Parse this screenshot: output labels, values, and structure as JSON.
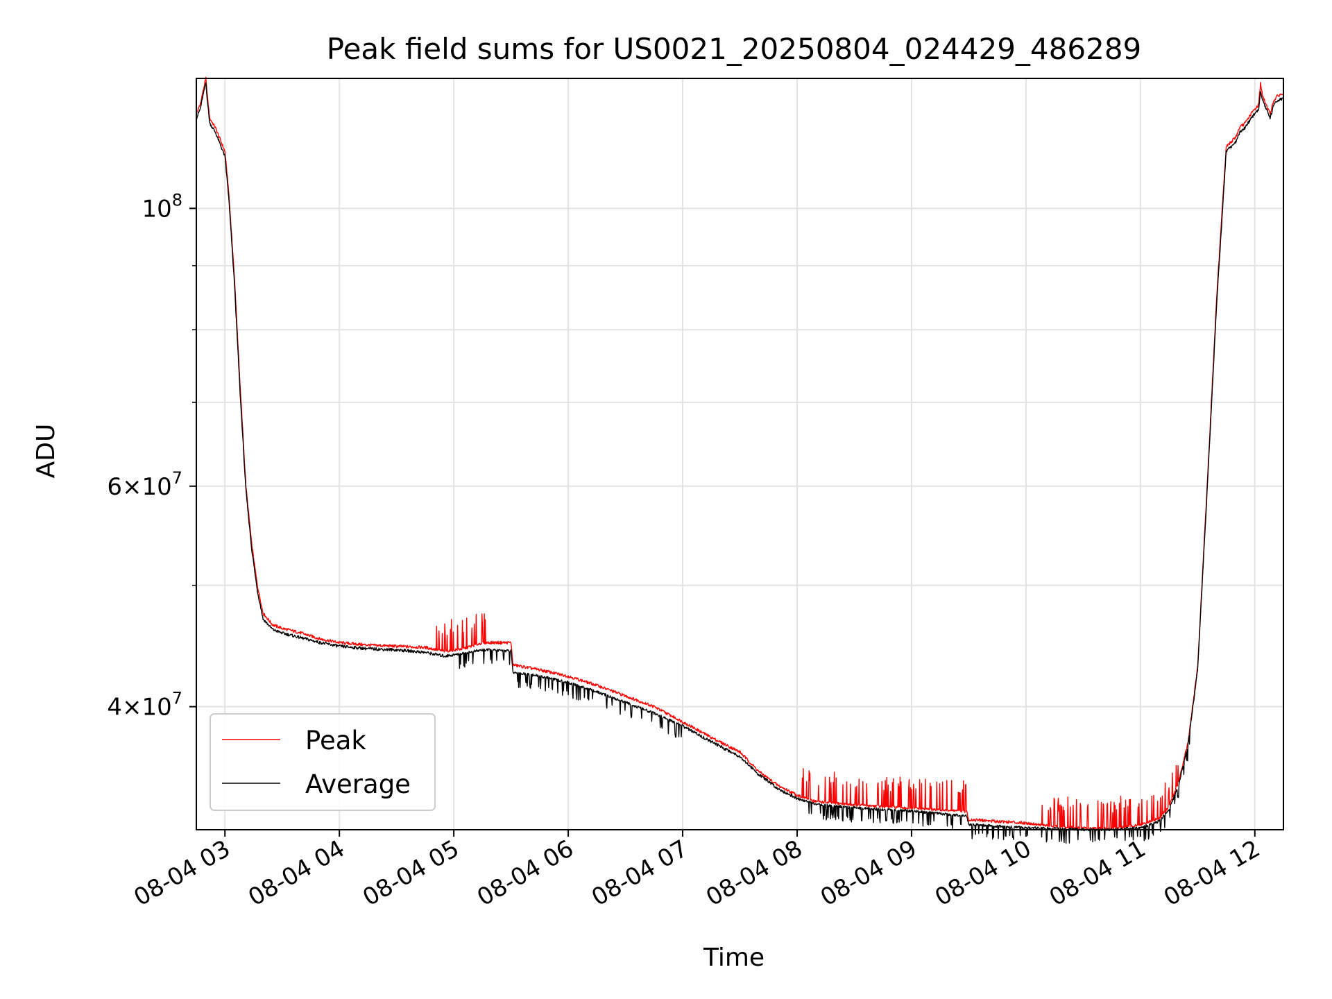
{
  "chart_data": {
    "type": "line",
    "title": "Peak field sums for US0021_20250804_024429_486289",
    "xlabel": "Time",
    "ylabel": "ADU",
    "yscale": "log",
    "ylim": [
      31900000,
      127000000
    ],
    "xlim": [
      "08-04 02:45",
      "08-04 12:15"
    ],
    "x_ticks": [
      "08-04 03",
      "08-04 04",
      "08-04 05",
      "08-04 06",
      "08-04 07",
      "08-04 08",
      "08-04 09",
      "08-04 10",
      "08-04 11",
      "08-04 12"
    ],
    "y_ticks": [
      {
        "value": 40000000,
        "mantissa": "4",
        "exponent": "7"
      },
      {
        "value": 60000000,
        "mantissa": "6",
        "exponent": "7"
      },
      {
        "value": 100000000,
        "mantissa": "",
        "exponent": "8"
      }
    ],
    "y_minor_ticks": [
      50000000,
      70000000,
      80000000,
      90000000
    ],
    "grid": true,
    "legend_position": "lower-left",
    "series": [
      {
        "name": "Peak",
        "color": "#ff0000",
        "x": [
          "02:45",
          "02:47",
          "02:49",
          "02:50",
          "02:51",
          "02:52",
          "02:55",
          "02:58",
          "03:00",
          "03:02",
          "03:05",
          "03:08",
          "03:11",
          "03:14",
          "03:17",
          "03:20",
          "03:25",
          "03:30",
          "03:40",
          "03:50",
          "04:00",
          "04:15",
          "04:30",
          "04:45",
          "04:55",
          "05:05",
          "05:15",
          "05:30",
          "05:31",
          "05:45",
          "06:00",
          "06:15",
          "06:30",
          "06:45",
          "07:00",
          "07:15",
          "07:30",
          "07:40",
          "07:50",
          "08:00",
          "08:10",
          "08:30",
          "09:00",
          "09:29",
          "09:30",
          "09:45",
          "10:00",
          "10:15",
          "10:30",
          "10:45",
          "11:00",
          "11:10",
          "11:15",
          "11:20",
          "11:25",
          "11:30",
          "11:35",
          "11:40",
          "11:45",
          "11:50",
          "11:52",
          "11:55",
          "11:58",
          "12:00",
          "12:02",
          "12:03",
          "12:04",
          "12:06",
          "12:08",
          "12:10",
          "12:12",
          "12:15"
        ],
        "y": [
          119000000,
          121000000,
          125000000,
          127000000,
          122000000,
          118000000,
          116000000,
          113000000,
          111000000,
          103000000,
          88000000,
          72000000,
          60000000,
          54000000,
          50000000,
          47500000,
          46500000,
          46200000,
          45800000,
          45300000,
          45000000,
          44800000,
          44700000,
          44600000,
          44300000,
          44500000,
          45000000,
          45000000,
          43200000,
          42800000,
          42300000,
          41600000,
          40800000,
          40000000,
          38900000,
          37800000,
          36800000,
          35500000,
          34600000,
          34000000,
          33600000,
          33400000,
          33200000,
          33000000,
          32500000,
          32400000,
          32300000,
          32100000,
          32000000,
          32000000,
          32200000,
          32600000,
          33300000,
          34800000,
          37500000,
          43000000,
          60000000,
          85000000,
          112000000,
          114000000,
          116000000,
          117000000,
          119000000,
          120000000,
          121000000,
          126000000,
          123000000,
          121000000,
          119000000,
          122000000,
          123000000,
          123500000
        ]
      },
      {
        "name": "Average",
        "color": "#000000",
        "x": [
          "02:45",
          "02:47",
          "02:49",
          "02:50",
          "02:51",
          "02:52",
          "02:55",
          "02:58",
          "03:00",
          "03:02",
          "03:05",
          "03:08",
          "03:11",
          "03:14",
          "03:17",
          "03:20",
          "03:25",
          "03:30",
          "03:40",
          "03:50",
          "04:00",
          "04:15",
          "04:30",
          "04:45",
          "04:55",
          "05:05",
          "05:15",
          "05:30",
          "05:31",
          "05:45",
          "06:00",
          "06:15",
          "06:30",
          "06:45",
          "07:00",
          "07:15",
          "07:30",
          "07:40",
          "07:50",
          "08:00",
          "08:10",
          "08:30",
          "09:00",
          "09:29",
          "09:30",
          "09:45",
          "10:00",
          "10:15",
          "10:30",
          "10:45",
          "11:00",
          "11:10",
          "11:15",
          "11:20",
          "11:25",
          "11:30",
          "11:35",
          "11:40",
          "11:45",
          "11:50",
          "11:52",
          "11:55",
          "11:58",
          "12:00",
          "12:02",
          "12:03",
          "12:04",
          "12:06",
          "12:08",
          "12:10",
          "12:12",
          "12:15"
        ],
        "y": [
          118000000,
          120000000,
          124000000,
          126000000,
          121000000,
          117000000,
          115000000,
          112000000,
          110000000,
          102000000,
          87000000,
          71000000,
          59500000,
          53500000,
          49500000,
          47000000,
          46100000,
          45800000,
          45400000,
          45000000,
          44700000,
          44500000,
          44400000,
          44200000,
          43900000,
          44100000,
          44400000,
          44300000,
          42600000,
          42300000,
          41800000,
          41100000,
          40300000,
          39500000,
          38600000,
          37500000,
          36500000,
          35300000,
          34400000,
          33800000,
          33400000,
          33200000,
          33000000,
          32700000,
          32200000,
          32100000,
          32000000,
          31950000,
          31900000,
          31900000,
          32000000,
          32400000,
          33100000,
          34600000,
          37300000,
          42800000,
          59500000,
          84000000,
          111000000,
          113000000,
          115000000,
          116000000,
          118000000,
          119000000,
          120000000,
          124000000,
          122000000,
          120000000,
          118000000,
          121000000,
          122000000,
          122500000
        ]
      }
    ]
  }
}
